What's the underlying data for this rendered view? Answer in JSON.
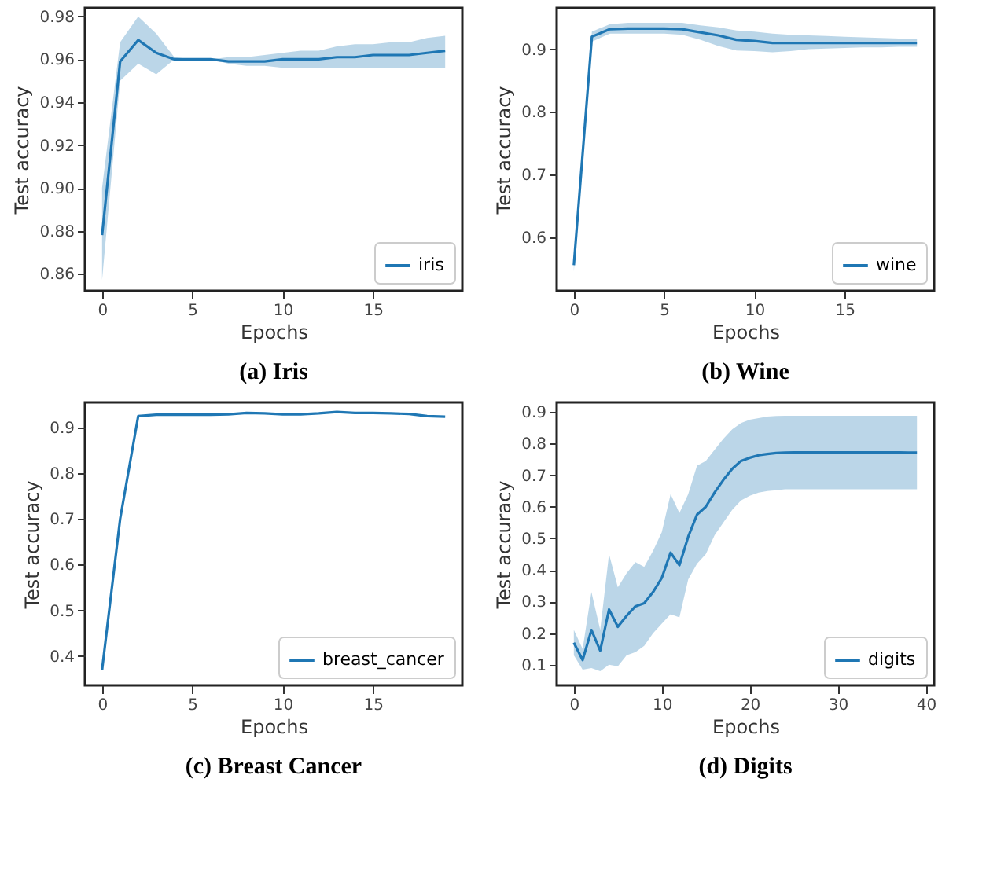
{
  "chart_data": [
    {
      "type": "line",
      "title": "(a) Iris",
      "xlabel": "Epochs",
      "ylabel": "Test accuracy",
      "legend": "bottom right",
      "grid": false,
      "x": [
        0,
        1,
        2,
        3,
        4,
        5,
        6,
        7,
        8,
        9,
        10,
        11,
        12,
        13,
        14,
        15,
        16,
        17,
        18,
        19
      ],
      "xlim": [
        -0.95,
        19.95
      ],
      "xticks": [
        0,
        5,
        10,
        15
      ],
      "ylim": [
        0.852,
        0.984
      ],
      "yticks": [
        0.86,
        0.88,
        {
          "value": 0.9,
          "label": "0.90"
        },
        0.92,
        0.94,
        0.96,
        0.98
      ],
      "series": [
        {
          "name": "iris",
          "color": "#1f77b4",
          "values": [
            0.878,
            0.959,
            0.969,
            0.963,
            0.96,
            0.96,
            0.96,
            0.959,
            0.959,
            0.959,
            0.96,
            0.96,
            0.96,
            0.961,
            0.961,
            0.962,
            0.962,
            0.962,
            0.963,
            0.964
          ],
          "lower": [
            0.857,
            0.95,
            0.958,
            0.953,
            0.96,
            0.96,
            0.96,
            0.958,
            0.957,
            0.957,
            0.956,
            0.956,
            0.956,
            0.956,
            0.956,
            0.956,
            0.956,
            0.956,
            0.956,
            0.956
          ],
          "upper": [
            0.9,
            0.968,
            0.98,
            0.972,
            0.961,
            0.96,
            0.96,
            0.961,
            0.961,
            0.962,
            0.963,
            0.964,
            0.964,
            0.966,
            0.967,
            0.967,
            0.968,
            0.968,
            0.97,
            0.971
          ]
        }
      ]
    },
    {
      "type": "line",
      "title": "(b) Wine",
      "xlabel": "Epochs",
      "ylabel": "Test accuracy",
      "legend": "bottom right",
      "grid": false,
      "x": [
        0,
        1,
        2,
        3,
        4,
        5,
        6,
        7,
        8,
        9,
        10,
        11,
        12,
        13,
        14,
        15,
        16,
        17,
        18,
        19
      ],
      "xlim": [
        -0.95,
        19.95
      ],
      "xticks": [
        0,
        5,
        10,
        15
      ],
      "ylim": [
        0.514,
        0.966
      ],
      "yticks": [
        0.6,
        0.7,
        0.8,
        0.9
      ],
      "series": [
        {
          "name": "wine",
          "color": "#1f77b4",
          "values": [
            0.555,
            0.92,
            0.932,
            0.933,
            0.933,
            0.933,
            0.932,
            0.927,
            0.922,
            0.915,
            0.913,
            0.91,
            0.91,
            0.91,
            0.91,
            0.91,
            0.91,
            0.91,
            0.91,
            0.91
          ],
          "lower": [
            0.545,
            0.912,
            0.925,
            0.925,
            0.925,
            0.925,
            0.923,
            0.915,
            0.905,
            0.898,
            0.897,
            0.895,
            0.897,
            0.9,
            0.901,
            0.902,
            0.903,
            0.903,
            0.904,
            0.904
          ],
          "upper": [
            0.565,
            0.928,
            0.94,
            0.942,
            0.942,
            0.942,
            0.942,
            0.938,
            0.935,
            0.93,
            0.928,
            0.925,
            0.923,
            0.922,
            0.921,
            0.92,
            0.919,
            0.918,
            0.917,
            0.916
          ]
        }
      ]
    },
    {
      "type": "line",
      "title": "(c) Breast Cancer",
      "xlabel": "Epochs",
      "ylabel": "Test accuracy",
      "legend": "bottom right",
      "grid": false,
      "x": [
        0,
        1,
        2,
        3,
        4,
        5,
        6,
        7,
        8,
        9,
        10,
        11,
        12,
        13,
        14,
        15,
        16,
        17,
        18,
        19
      ],
      "xlim": [
        -0.95,
        19.95
      ],
      "xticks": [
        0,
        5,
        10,
        15
      ],
      "ylim": [
        0.336,
        0.955
      ],
      "yticks": [
        0.4,
        0.5,
        0.6,
        0.7,
        0.8,
        0.9
      ],
      "series": [
        {
          "name": "breast_cancer",
          "color": "#1f77b4",
          "values": [
            0.37,
            0.7,
            0.925,
            0.928,
            0.928,
            0.928,
            0.928,
            0.929,
            0.932,
            0.931,
            0.929,
            0.929,
            0.931,
            0.934,
            0.932,
            0.932,
            0.931,
            0.93,
            0.925,
            0.924
          ]
        }
      ]
    },
    {
      "type": "line",
      "title": "(d) Digits",
      "xlabel": "Epochs",
      "ylabel": "Test accuracy",
      "legend": "bottom right",
      "grid": false,
      "x": [
        0,
        1,
        2,
        3,
        4,
        5,
        6,
        7,
        8,
        9,
        10,
        11,
        12,
        13,
        14,
        15,
        16,
        17,
        18,
        19,
        20,
        21,
        22,
        23,
        24,
        25,
        26,
        27,
        28,
        29,
        30,
        31,
        32,
        33,
        34,
        35,
        36,
        37,
        38,
        39
      ],
      "xlim": [
        -1.95,
        40.95
      ],
      "xticks": [
        0,
        10,
        20,
        30,
        40
      ],
      "ylim": [
        0.035,
        0.93
      ],
      "yticks": [
        0.1,
        0.2,
        0.3,
        0.4,
        0.5,
        0.6,
        0.7,
        0.8,
        0.9
      ],
      "series": [
        {
          "name": "digits",
          "color": "#1f77b4",
          "values": [
            0.17,
            0.115,
            0.21,
            0.145,
            0.275,
            0.22,
            0.255,
            0.285,
            0.295,
            0.33,
            0.375,
            0.455,
            0.415,
            0.505,
            0.575,
            0.6,
            0.645,
            0.685,
            0.72,
            0.745,
            0.755,
            0.763,
            0.767,
            0.77,
            0.771,
            0.772,
            0.772,
            0.772,
            0.772,
            0.772,
            0.772,
            0.772,
            0.772,
            0.772,
            0.772,
            0.772,
            0.772,
            0.772,
            0.771,
            0.771
          ],
          "lower": [
            0.13,
            0.085,
            0.09,
            0.08,
            0.1,
            0.095,
            0.13,
            0.14,
            0.16,
            0.2,
            0.23,
            0.26,
            0.25,
            0.37,
            0.42,
            0.45,
            0.51,
            0.55,
            0.59,
            0.62,
            0.635,
            0.645,
            0.65,
            0.652,
            0.655,
            0.655,
            0.655,
            0.655,
            0.655,
            0.655,
            0.655,
            0.655,
            0.655,
            0.655,
            0.655,
            0.655,
            0.655,
            0.655,
            0.655,
            0.655
          ],
          "upper": [
            0.21,
            0.15,
            0.33,
            0.21,
            0.45,
            0.345,
            0.39,
            0.425,
            0.41,
            0.46,
            0.52,
            0.64,
            0.58,
            0.64,
            0.73,
            0.745,
            0.78,
            0.815,
            0.845,
            0.865,
            0.875,
            0.88,
            0.885,
            0.887,
            0.888,
            0.888,
            0.888,
            0.888,
            0.888,
            0.888,
            0.888,
            0.888,
            0.888,
            0.888,
            0.888,
            0.888,
            0.888,
            0.888,
            0.888,
            0.888
          ]
        }
      ]
    }
  ]
}
